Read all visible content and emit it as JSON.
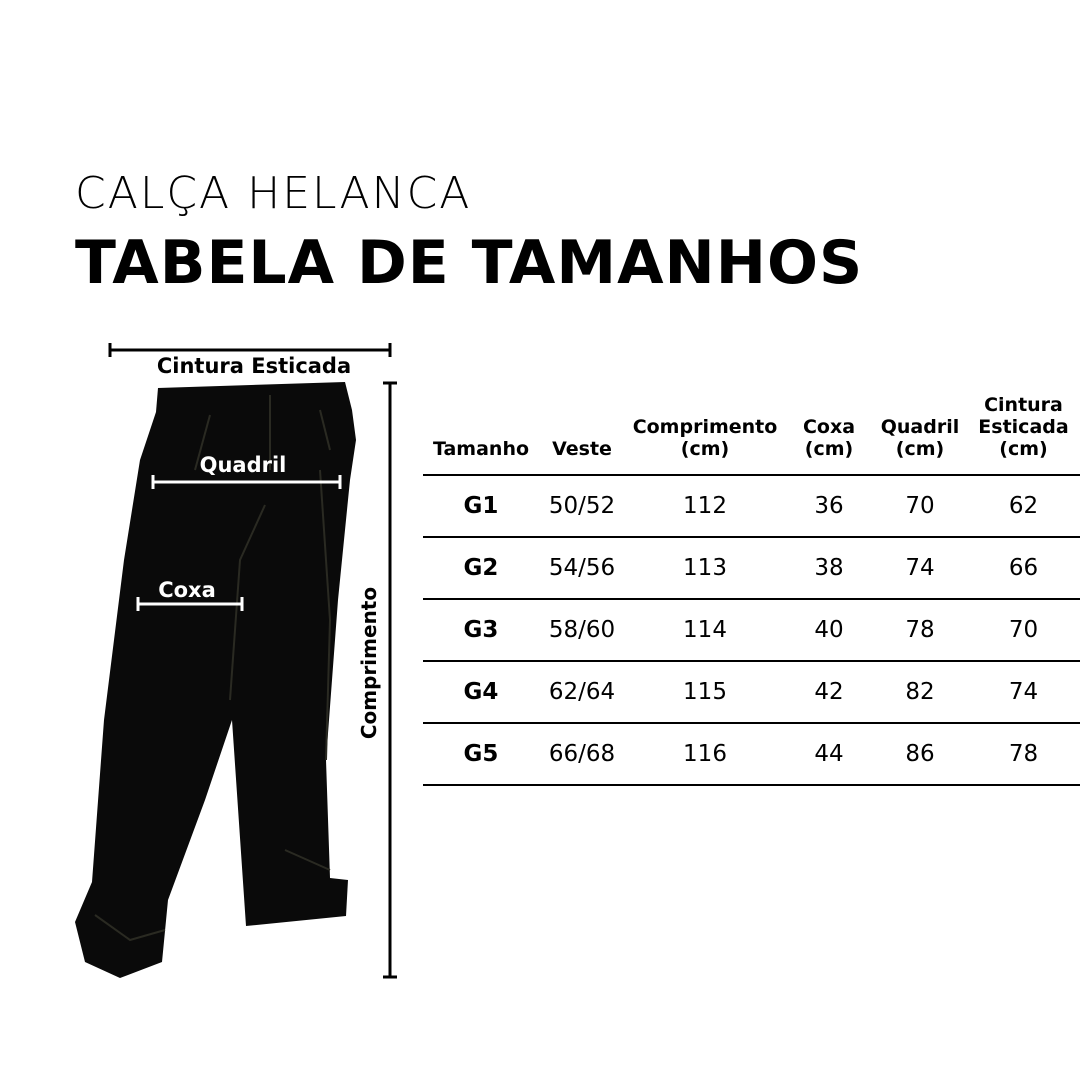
{
  "header": {
    "subtitle": "CALÇA HELANCA",
    "title": "TABELA DE TAMANHOS"
  },
  "illustration": {
    "labels": {
      "waist": "Cintura Esticada",
      "hip": "Quadril",
      "thigh": "Coxa",
      "length": "Comprimento"
    }
  },
  "table": {
    "columns": [
      "Tamanho",
      "Veste",
      "Comprimento (cm)",
      "Coxa (cm)",
      "Quadril (cm)",
      "Cintura Esticada (cm)"
    ],
    "rows": [
      [
        "G1",
        "50/52",
        "112",
        "36",
        "70",
        "62"
      ],
      [
        "G2",
        "54/56",
        "113",
        "38",
        "74",
        "66"
      ],
      [
        "G3",
        "58/60",
        "114",
        "40",
        "78",
        "70"
      ],
      [
        "G4",
        "62/64",
        "115",
        "42",
        "82",
        "74"
      ],
      [
        "G5",
        "66/68",
        "116",
        "44",
        "86",
        "78"
      ]
    ]
  }
}
